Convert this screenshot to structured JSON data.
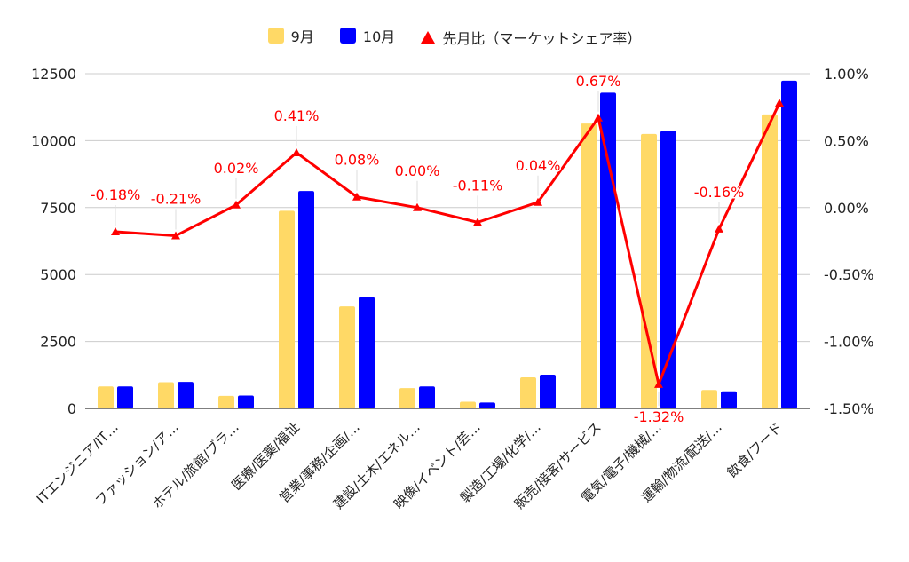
{
  "colors": {
    "sep": "#FFD966",
    "oct": "#0000FF",
    "ratio": "#FF0000",
    "grid": "#CCCCCC",
    "axis_text": "#222222"
  },
  "legend": {
    "items": [
      {
        "label": "9月",
        "icon": "square-swatch"
      },
      {
        "label": "10月",
        "icon": "square-swatch"
      },
      {
        "label": "先月比（マーケットシェア率）",
        "icon": "triangle-marker"
      }
    ]
  },
  "chart_data": {
    "type": "bar",
    "categories": [
      "ITエンジニア/IT…",
      "ファッション/ア…",
      "ホテル/旅館/ブラ…",
      "医療/医薬/福祉",
      "営業/事務/企画/…",
      "建設/土木/エネル…",
      "映像/イベント/芸…",
      "製造/工場/化学/…",
      "販売/接客/サービス",
      "電気/電子/機械/…",
      "運輸/物流/配送/…",
      "飲食/フード"
    ],
    "series": [
      {
        "name": "9月",
        "axis": "left",
        "values": [
          820,
          980,
          470,
          7380,
          3810,
          760,
          250,
          1160,
          10640,
          10250,
          690,
          10980
        ]
      },
      {
        "name": "10月",
        "axis": "left",
        "values": [
          820,
          990,
          480,
          8120,
          4160,
          820,
          220,
          1260,
          11790,
          10360,
          640,
          12240
        ]
      },
      {
        "name": "先月比（マーケットシェア率）",
        "type": "line",
        "axis": "right",
        "values": [
          -0.18,
          -0.21,
          0.02,
          0.41,
          0.08,
          0.0,
          -0.11,
          0.04,
          0.67,
          -1.32,
          -0.16,
          0.78
        ]
      }
    ],
    "ratio_labels": [
      "-0.18%",
      "-0.21%",
      "0.02%",
      "0.41%",
      "0.08%",
      "0.00%",
      "-0.11%",
      "0.04%",
      "0.67%",
      "-1.32%",
      "-0.16%",
      ""
    ],
    "y_left": {
      "min": 0,
      "max": 12500,
      "ticks": [
        "0",
        "2500",
        "5000",
        "7500",
        "10000",
        "12500"
      ]
    },
    "y_right": {
      "min": -1.5,
      "max": 1.0,
      "ticks": [
        "-1.50%",
        "-1.00%",
        "-0.50%",
        "0.00%",
        "0.50%",
        "1.00%"
      ]
    },
    "grid": true,
    "legend_position": "top"
  }
}
